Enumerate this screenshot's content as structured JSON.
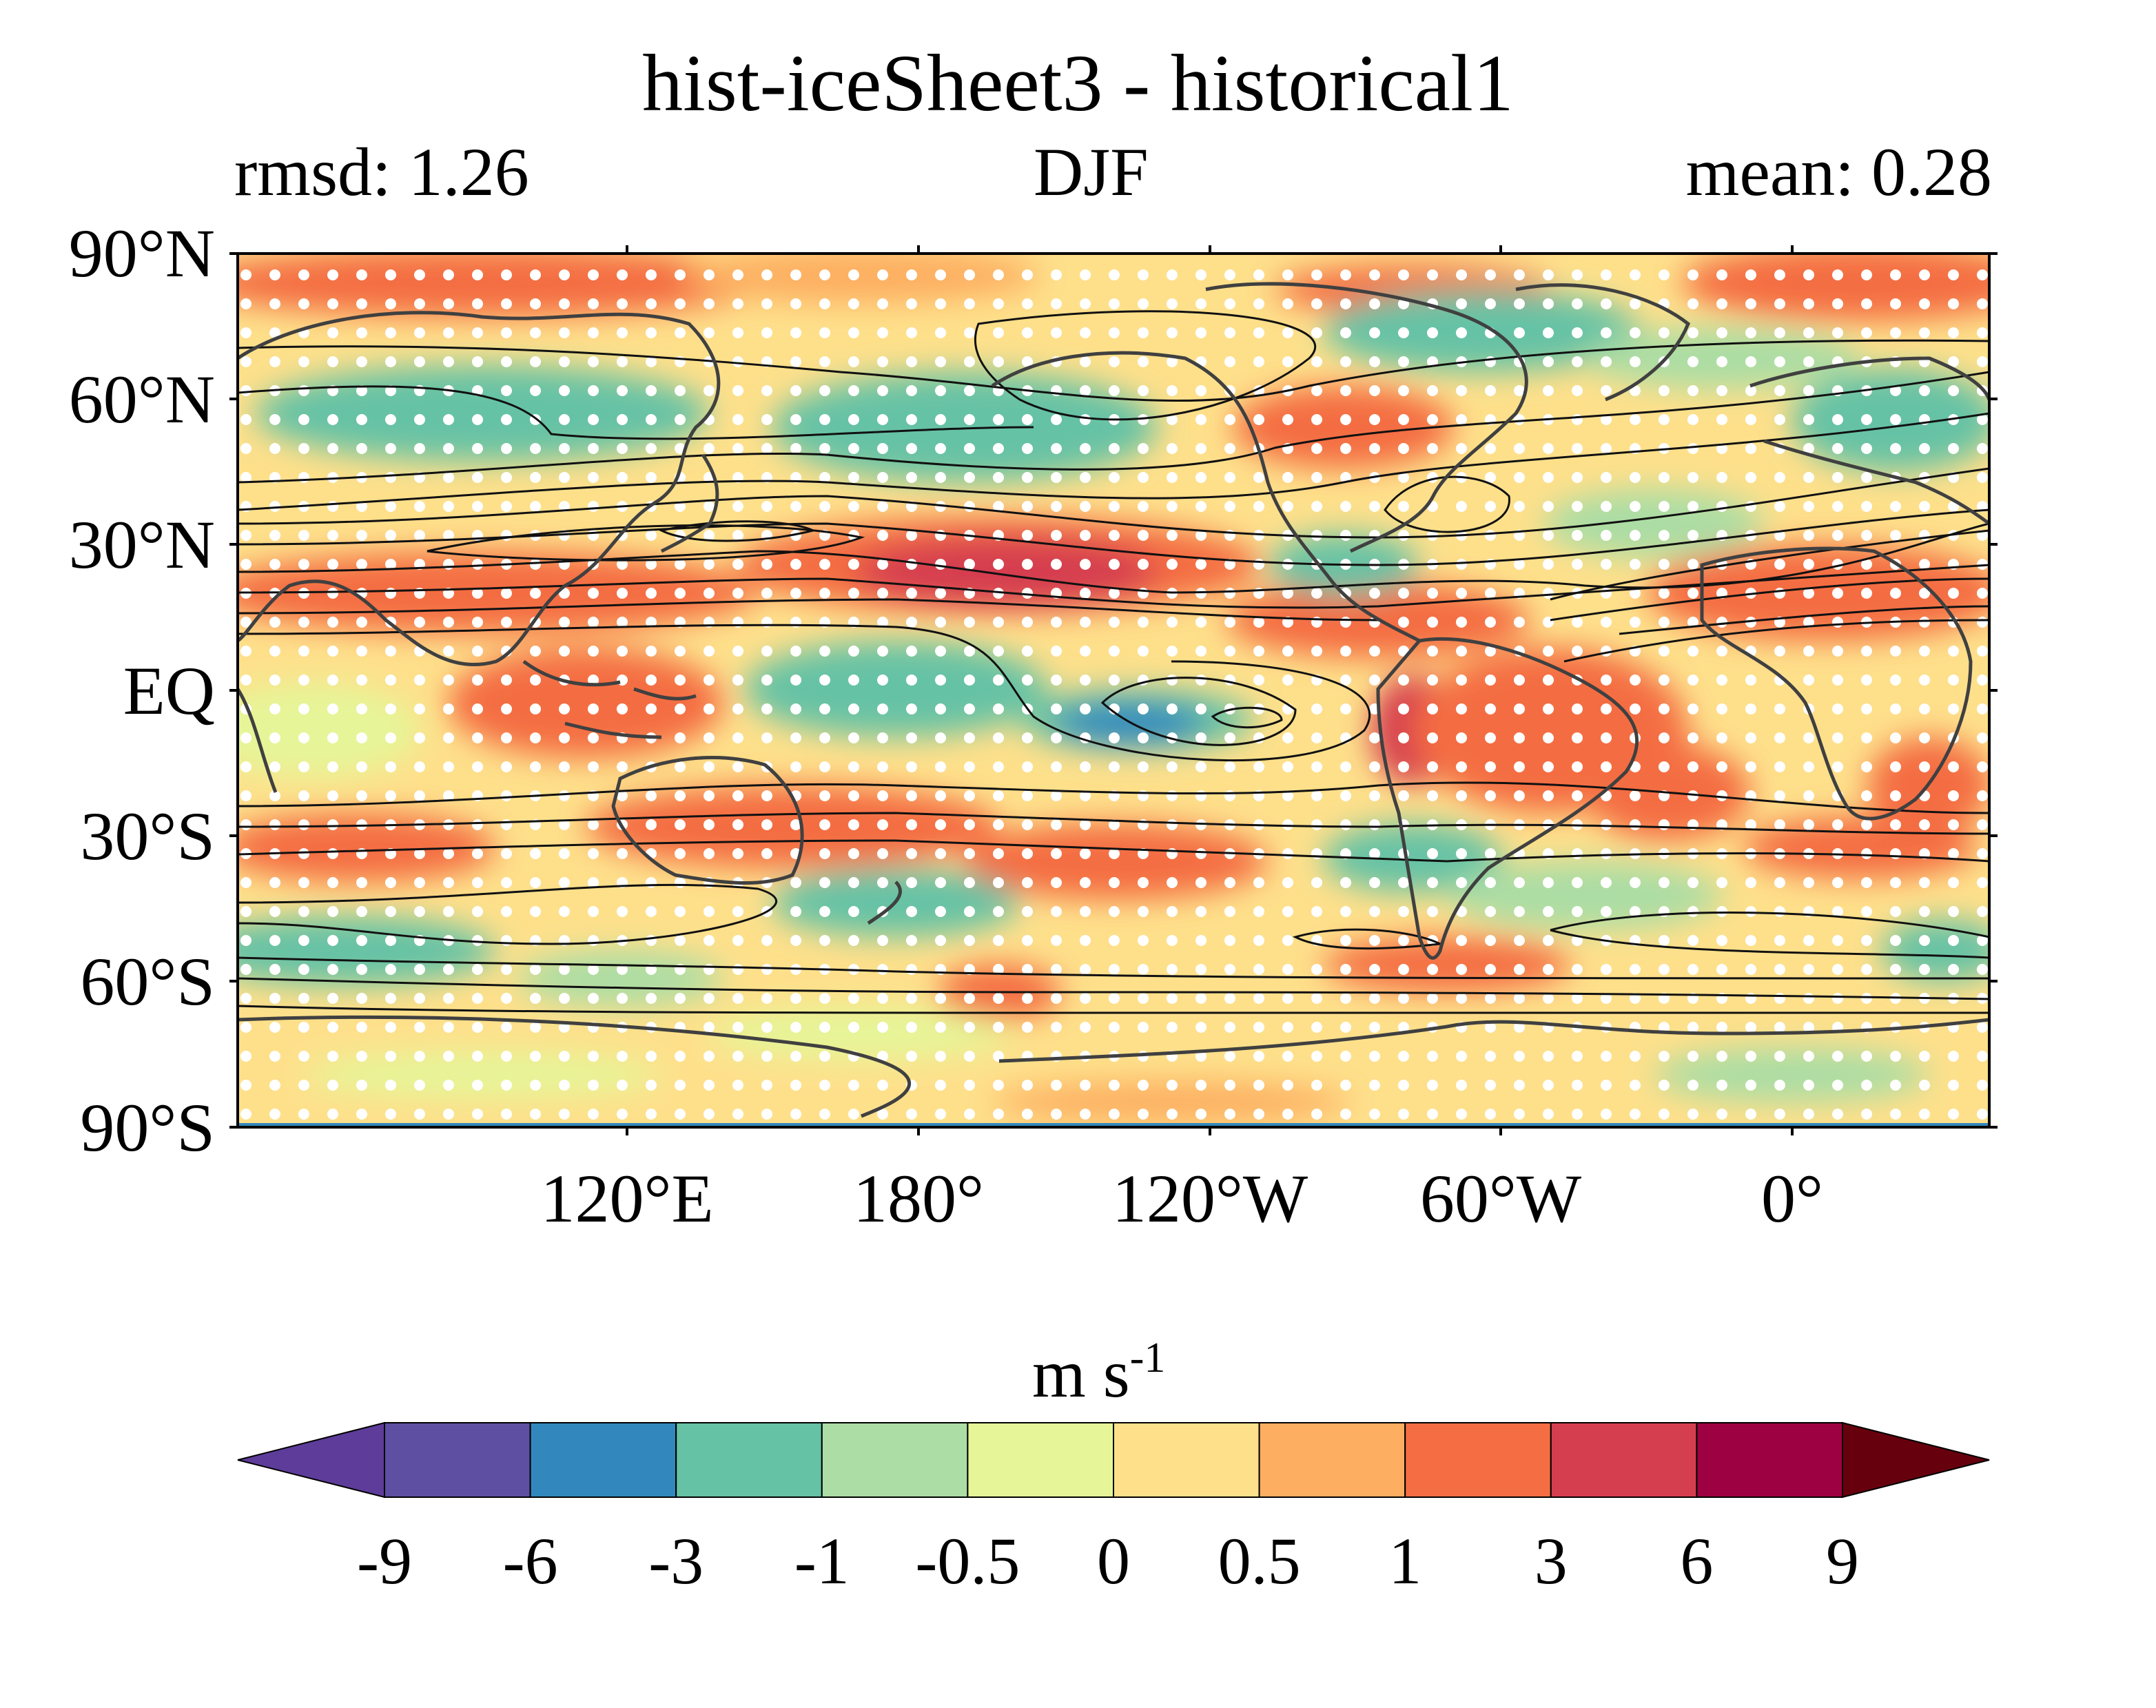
{
  "title": "hist-iceSheet3 - historical1",
  "left_label": "rmsd: 1.26",
  "center_label": "DJF",
  "right_label": "mean: 0.28",
  "map": {
    "lat_labels": [
      "90°N",
      "60°N",
      "30°N",
      "EQ",
      "30°S",
      "60°S",
      "90°S"
    ],
    "lon_labels": [
      "120°E",
      "180°",
      "120°W",
      "60°W",
      "0°"
    ],
    "stippling": true,
    "contours_overlay": true
  },
  "colorbar": {
    "unit_base": "m s",
    "unit_exp": "-1",
    "extend": "both",
    "boundaries": [
      "-9",
      "-6",
      "-3",
      "-1",
      "-0.5",
      "0",
      "0.5",
      "1",
      "3",
      "6",
      "9"
    ],
    "colors": [
      "#5e3c99",
      "#5e4fa2",
      "#3288bd",
      "#66c2a5",
      "#abdda4",
      "#e6f598",
      "#fee08b",
      "#fdae61",
      "#f46d43",
      "#d53e4f",
      "#9e0142",
      "#67000d"
    ]
  }
}
